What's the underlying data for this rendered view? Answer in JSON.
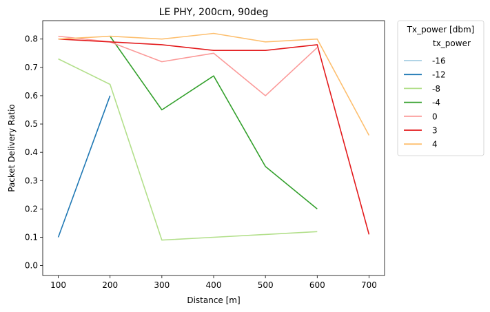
{
  "chart_data": {
    "type": "line",
    "title": "LE PHY, 200cm, 90deg",
    "xlabel": "Distance [m]",
    "ylabel": "Packet Delivery Ratio",
    "xlim": [
      70,
      730
    ],
    "ylim": [
      -0.035,
      0.865
    ],
    "xticks": [
      100,
      200,
      300,
      400,
      500,
      600,
      700
    ],
    "yticks": [
      0.0,
      0.1,
      0.2,
      0.3,
      0.4,
      0.5,
      0.6,
      0.7,
      0.8
    ],
    "ytick_labels": [
      "0.0",
      "0.1",
      "0.2",
      "0.3",
      "0.4",
      "0.5",
      "0.6",
      "0.7",
      "0.8"
    ],
    "grid": false,
    "legend": {
      "title": "Tx_power [dbm]",
      "subtitle": "tx_power",
      "placement": "outside-top-right"
    },
    "series": [
      {
        "name": "-16",
        "color": "#a6cee3",
        "points": []
      },
      {
        "name": "-12",
        "color": "#1f78b4",
        "points": [
          [
            100,
            0.1
          ],
          [
            200,
            0.6
          ]
        ]
      },
      {
        "name": "-8",
        "color": "#b2df8a",
        "points": [
          [
            100,
            0.73
          ],
          [
            200,
            0.64
          ],
          [
            300,
            0.09
          ],
          [
            400,
            0.1
          ],
          [
            500,
            0.11
          ],
          [
            600,
            0.12
          ]
        ]
      },
      {
        "name": "-4",
        "color": "#33a02c",
        "points": [
          [
            200,
            0.81
          ],
          [
            300,
            0.55
          ],
          [
            400,
            0.67
          ],
          [
            500,
            0.35
          ],
          [
            600,
            0.2
          ]
        ]
      },
      {
        "name": "0",
        "color": "#fb9a99",
        "points": [
          [
            100,
            0.81
          ],
          [
            200,
            0.79
          ],
          [
            300,
            0.72
          ],
          [
            400,
            0.75
          ],
          [
            500,
            0.6
          ],
          [
            600,
            0.77
          ]
        ]
      },
      {
        "name": "3",
        "color": "#e31a1c",
        "points": [
          [
            100,
            0.8
          ],
          [
            200,
            0.79
          ],
          [
            300,
            0.78
          ],
          [
            400,
            0.76
          ],
          [
            500,
            0.76
          ],
          [
            600,
            0.78
          ],
          [
            700,
            0.11
          ]
        ]
      },
      {
        "name": "4",
        "color": "#fdbf6f",
        "points": [
          [
            100,
            0.8
          ],
          [
            200,
            0.81
          ],
          [
            300,
            0.8
          ],
          [
            400,
            0.82
          ],
          [
            500,
            0.79
          ],
          [
            600,
            0.8
          ],
          [
            700,
            0.46
          ]
        ]
      }
    ]
  }
}
